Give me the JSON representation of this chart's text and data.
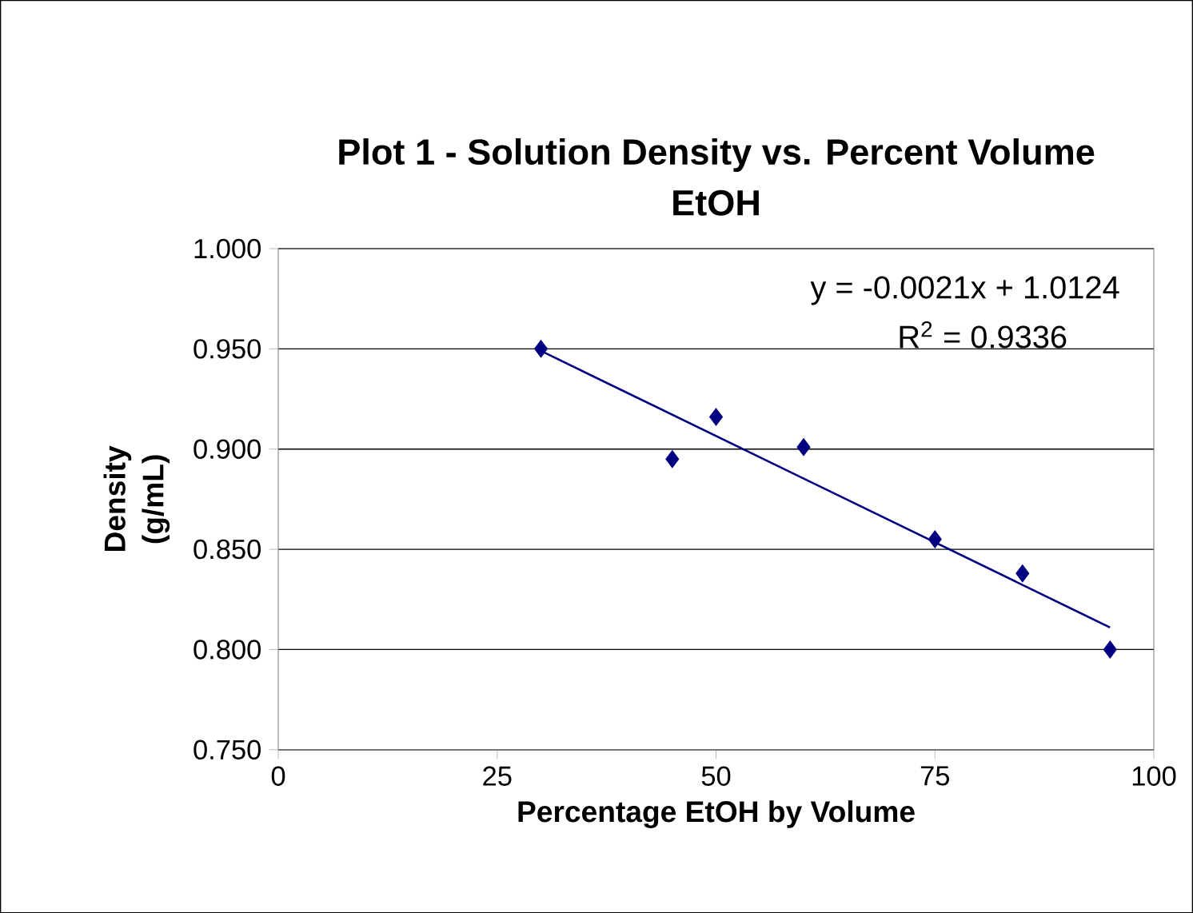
{
  "chart_data": {
    "type": "scatter",
    "title": "Plot 1 - Solution Density vs. Percent Volume EtOH",
    "xlabel": "Percentage EtOH by Volume",
    "ylabel": "Density (g/mL)",
    "annotations": [
      "y = -0.0021x + 1.0124",
      "R$^{2}$ = 0.9336"
    ],
    "series": [
      {
        "color": "#000080",
        "marker": "diamond",
        "x": [
          30,
          45,
          50,
          60,
          75,
          85,
          95
        ],
        "values": [
          0.95,
          0.895,
          0.916,
          0.901,
          0.855,
          0.838,
          0.8
        ]
      },
      {
        "type": "line",
        "color": "#000080",
        "marker": "none",
        "x": [
          30,
          95
        ],
        "values": [
          0.949,
          0.811
        ]
      }
    ],
    "xlim": [
      0,
      100
    ],
    "xticks": [
      0,
      25,
      50,
      75,
      100
    ],
    "ylim": [
      0.75,
      1.0
    ],
    "yticks": [
      {
        "value": 0.75,
        "label": "0.750"
      },
      {
        "value": 0.8,
        "label": "0.800"
      },
      {
        "value": 0.85,
        "label": "0.850"
      },
      {
        "value": 0.9,
        "label": "0.900"
      },
      {
        "value": 0.95,
        "label": "0.950"
      },
      {
        "value": 1.0,
        "label": "1.000"
      }
    ],
    "grid": "y"
  }
}
